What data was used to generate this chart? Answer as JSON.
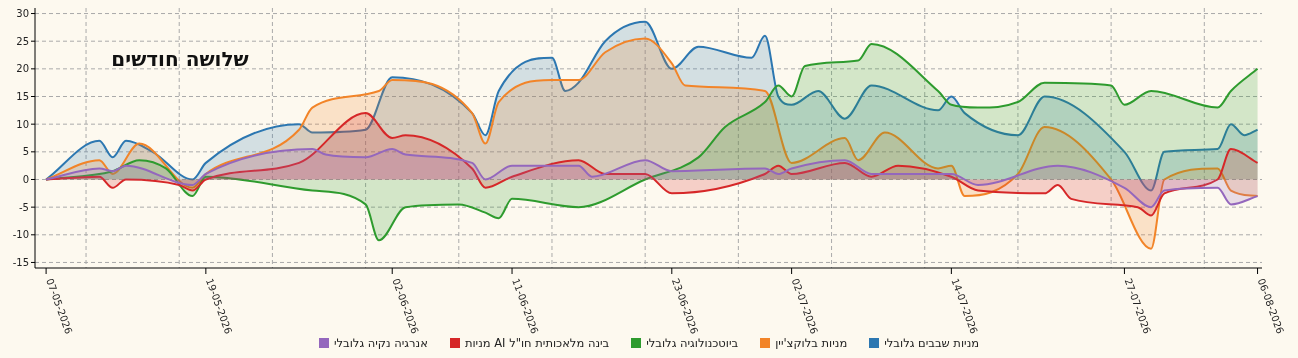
{
  "chart_data": {
    "type": "area",
    "title": "שלושה חודשים",
    "xlim": [
      "2026-05-06T04:00",
      "2026-08-06T08:00"
    ],
    "xticks": [
      {
        "value": "2026-05-07",
        "label": "07-05-2026"
      },
      {
        "value": "2026-05-19",
        "label": "19-05-2026"
      },
      {
        "value": "2026-06-02",
        "label": "02-06-2026"
      },
      {
        "value": "2026-06-11",
        "label": "11-06-2026"
      },
      {
        "value": "2026-06-23",
        "label": "23-06-2026"
      },
      {
        "value": "2026-07-02",
        "label": "02-07-2026"
      },
      {
        "value": "2026-07-14",
        "label": "14-07-2026"
      },
      {
        "value": "2026-07-27",
        "label": "27-07-2026"
      },
      {
        "value": "2026-08-06",
        "label": "06-08-2026"
      }
    ],
    "ylim": [
      -16,
      31
    ],
    "yticks": [
      -15,
      -10,
      -5,
      0,
      5,
      10,
      15,
      20,
      25,
      30
    ],
    "grid": "y",
    "legend": "bottom",
    "ref_lines": [
      {
        "axis": "x",
        "value": "2026-05-10",
        "color": "#aaaaaa",
        "line_style": "dashed"
      },
      {
        "axis": "x",
        "value": "2026-05-17",
        "color": "#aaaaaa",
        "line_style": "dashed"
      },
      {
        "axis": "x",
        "value": "2026-05-24",
        "color": "#aaaaaa",
        "line_style": "dashed"
      },
      {
        "axis": "x",
        "value": "2026-05-31",
        "color": "#aaaaaa",
        "line_style": "dashed"
      },
      {
        "axis": "x",
        "value": "2026-06-07",
        "color": "#aaaaaa",
        "line_style": "dashed"
      },
      {
        "axis": "x",
        "value": "2026-06-14",
        "color": "#aaaaaa",
        "line_style": "dashed"
      },
      {
        "axis": "x",
        "value": "2026-06-21",
        "color": "#aaaaaa",
        "line_style": "dashed"
      },
      {
        "axis": "x",
        "value": "2026-06-28",
        "color": "#aaaaaa",
        "line_style": "dashed"
      },
      {
        "axis": "x",
        "value": "2026-07-05",
        "color": "#aaaaaa",
        "line_style": "dashed"
      },
      {
        "axis": "x",
        "value": "2026-07-12",
        "color": "#aaaaaa",
        "line_style": "dashed"
      },
      {
        "axis": "x",
        "value": "2026-07-19",
        "color": "#aaaaaa",
        "line_style": "dashed"
      },
      {
        "axis": "x",
        "value": "2026-07-26",
        "color": "#aaaaaa",
        "line_style": "dashed"
      },
      {
        "axis": "x",
        "value": "2026-08-02",
        "color": "#aaaaaa",
        "line_style": "dashed"
      }
    ],
    "series": [
      {
        "name": "מניות שבבים גלובלי",
        "color": "#2c77b1",
        "x": [
          "2026-05-07",
          "2026-05-11",
          "2026-05-12",
          "2026-05-13",
          "2026-05-15",
          "2026-05-18",
          "2026-05-19",
          "2026-05-26",
          "2026-05-27",
          "2026-05-31",
          "2026-06-02",
          "2026-06-08",
          "2026-06-09",
          "2026-06-10",
          "2026-06-14",
          "2026-06-15",
          "2026-06-16",
          "2026-06-18",
          "2026-06-21",
          "2026-06-23",
          "2026-06-25",
          "2026-06-29",
          "2026-06-30",
          "2026-07-01",
          "2026-07-02",
          "2026-07-04",
          "2026-07-06",
          "2026-07-08",
          "2026-07-13",
          "2026-07-14",
          "2026-07-15",
          "2026-07-19",
          "2026-07-21",
          "2026-07-27",
          "2026-07-29",
          "2026-07-30",
          "2026-08-03",
          "2026-08-04",
          "2026-08-05",
          "2026-08-06"
        ],
        "values": [
          0,
          7,
          4,
          7,
          5,
          0,
          3,
          10,
          8.5,
          9,
          18.5,
          12,
          8,
          16,
          22,
          16,
          17.5,
          25,
          28.5,
          20,
          24,
          22,
          26,
          15,
          13.5,
          16,
          11,
          17,
          12.5,
          15,
          12,
          8,
          15,
          5,
          -2,
          5,
          5.5,
          10,
          8,
          9
        ]
      },
      {
        "name": "מניות בלוקצ'יין",
        "color": "#f28428",
        "x": [
          "2026-05-07",
          "2026-05-11",
          "2026-05-12",
          "2026-05-14",
          "2026-05-18",
          "2026-05-19",
          "2026-05-26",
          "2026-05-27",
          "2026-06-01",
          "2026-06-02",
          "2026-06-08",
          "2026-06-09",
          "2026-06-10",
          "2026-06-14",
          "2026-06-16",
          "2026-06-18",
          "2026-06-21",
          "2026-06-23",
          "2026-06-24",
          "2026-06-30",
          "2026-07-02",
          "2026-07-06",
          "2026-07-07",
          "2026-07-09",
          "2026-07-13",
          "2026-07-14",
          "2026-07-15",
          "2026-07-19",
          "2026-07-21",
          "2026-07-26",
          "2026-07-29",
          "2026-07-30",
          "2026-08-03",
          "2026-08-04",
          "2026-08-06"
        ],
        "values": [
          0,
          3.5,
          1,
          6.5,
          -1.5,
          1,
          9,
          13,
          16,
          18,
          12,
          6.5,
          14,
          18,
          18,
          23,
          25.5,
          21,
          17,
          16,
          3,
          7.5,
          3.5,
          8.5,
          2,
          2.5,
          -3,
          1,
          9.5,
          0,
          -12.5,
          0,
          2,
          -2,
          -3
        ]
      },
      {
        "name": "ביוטכנולוגיה גלובלי",
        "color": "#2e9b2e",
        "x": [
          "2026-05-07",
          "2026-05-12",
          "2026-05-14",
          "2026-05-16",
          "2026-05-18",
          "2026-05-19",
          "2026-05-27",
          "2026-05-31",
          "2026-06-01",
          "2026-06-03",
          "2026-06-07",
          "2026-06-09",
          "2026-06-10",
          "2026-06-11",
          "2026-06-16",
          "2026-06-21",
          "2026-06-25",
          "2026-06-27",
          "2026-06-30",
          "2026-07-01",
          "2026-07-02",
          "2026-07-03",
          "2026-07-07",
          "2026-07-08",
          "2026-07-13",
          "2026-07-14",
          "2026-07-16",
          "2026-07-19",
          "2026-07-21",
          "2026-07-26",
          "2026-07-27",
          "2026-07-29",
          "2026-08-03",
          "2026-08-04",
          "2026-08-06"
        ],
        "values": [
          0,
          1.5,
          3.5,
          2,
          -3,
          0.5,
          -2,
          -4.5,
          -11,
          -5,
          -4.5,
          -6,
          -7,
          -3.5,
          -5,
          0,
          4,
          9.5,
          14,
          17,
          15,
          20.5,
          21.5,
          24.5,
          16,
          13.5,
          13,
          14,
          17.5,
          17,
          13.5,
          16,
          13,
          16,
          20
        ]
      },
      {
        "name": "בינה מלאכותית חו\"ל AI מניות",
        "color": "#d62728",
        "x": [
          "2026-05-07",
          "2026-05-11",
          "2026-05-12",
          "2026-05-13",
          "2026-05-17",
          "2026-05-18",
          "2026-05-19",
          "2026-05-26",
          "2026-05-31",
          "2026-06-02",
          "2026-06-03",
          "2026-06-08",
          "2026-06-09",
          "2026-06-11",
          "2026-06-16",
          "2026-06-18",
          "2026-06-21",
          "2026-06-23",
          "2026-06-30",
          "2026-07-01",
          "2026-07-02",
          "2026-07-06",
          "2026-07-08",
          "2026-07-10",
          "2026-07-14",
          "2026-07-16",
          "2026-07-21",
          "2026-07-22",
          "2026-07-23",
          "2026-07-28",
          "2026-07-29",
          "2026-07-30",
          "2026-08-03",
          "2026-08-04",
          "2026-08-06"
        ],
        "values": [
          0,
          0.5,
          -1.5,
          0,
          -1,
          -2,
          0,
          3,
          12,
          7.5,
          8,
          2,
          -1.5,
          0.5,
          3.5,
          1,
          1,
          -2.5,
          1,
          2.5,
          1,
          3,
          0.5,
          2.5,
          0.5,
          -2,
          -2.5,
          -1,
          -3.5,
          -5,
          -6.5,
          -2.5,
          0,
          5.5,
          3
        ]
      },
      {
        "name": "אנרגיה נקיה גלובלי",
        "color": "#9467bd",
        "x": [
          "2026-05-07",
          "2026-05-11",
          "2026-05-12",
          "2026-05-13",
          "2026-05-18",
          "2026-05-19",
          "2026-05-27",
          "2026-05-28",
          "2026-05-31",
          "2026-06-02",
          "2026-06-03",
          "2026-06-08",
          "2026-06-09",
          "2026-06-11",
          "2026-06-16",
          "2026-06-17",
          "2026-06-21",
          "2026-06-23",
          "2026-06-30",
          "2026-07-01",
          "2026-07-02",
          "2026-07-06",
          "2026-07-08",
          "2026-07-14",
          "2026-07-16",
          "2026-07-22",
          "2026-07-27",
          "2026-07-29",
          "2026-07-30",
          "2026-08-03",
          "2026-08-04",
          "2026-08-06"
        ],
        "values": [
          0,
          2,
          1.5,
          2.5,
          -1,
          1,
          5.5,
          4.5,
          4,
          5.5,
          4.5,
          3,
          0,
          2.5,
          2.5,
          0.5,
          3.5,
          1.5,
          2,
          1,
          2,
          3.5,
          1,
          1,
          -1,
          2.5,
          -1.5,
          -5,
          -2,
          -1.5,
          -4.5,
          -3
        ]
      }
    ]
  }
}
